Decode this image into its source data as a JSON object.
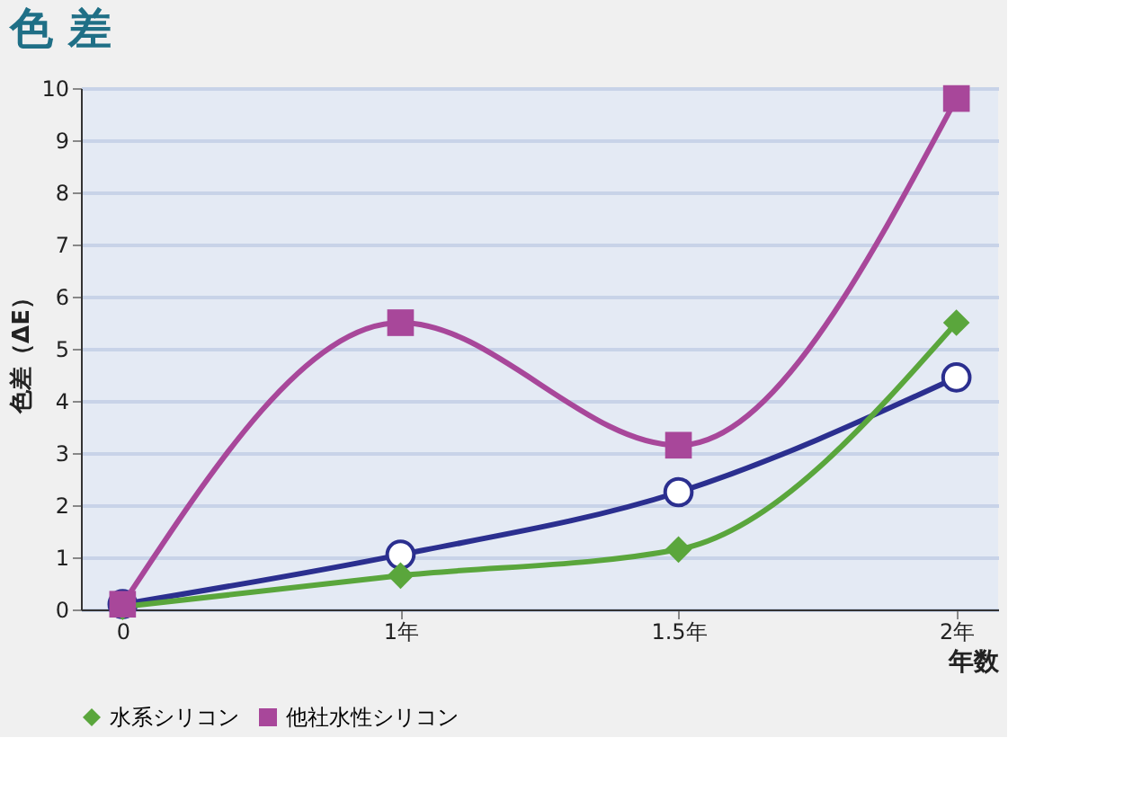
{
  "chart_data": {
    "type": "line",
    "title": "色 差",
    "xlabel": "年数",
    "ylabel": "色差（ΔE）",
    "categories": [
      "0",
      "1年",
      "1.5年",
      "2年"
    ],
    "series": [
      {
        "color": "#2b2f8f",
        "marker": "circle",
        "values": [
          0.1,
          1.05,
          2.25,
          4.45
        ]
      },
      {
        "name": "水系シリコン",
        "color": "#5aa63c",
        "marker": "diamond",
        "values": [
          0.05,
          0.65,
          1.15,
          5.5
        ]
      },
      {
        "name": "他社水性シリコン",
        "color": "#a8479a",
        "marker": "square",
        "values": [
          0.1,
          5.5,
          3.15,
          9.8
        ]
      }
    ],
    "ylim": [
      0,
      10
    ],
    "yticks": [
      0,
      1,
      2,
      3,
      4,
      5,
      6,
      7,
      8,
      9,
      10
    ],
    "grid": "y",
    "legend": "bottom",
    "line_style": "solid"
  }
}
